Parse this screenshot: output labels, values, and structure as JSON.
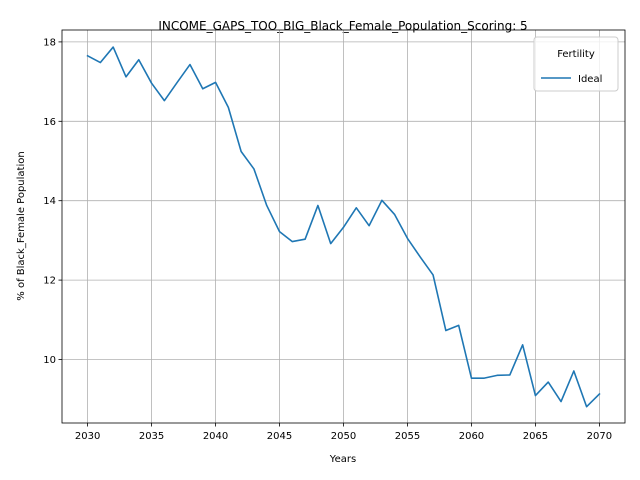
{
  "chart_data": {
    "type": "line",
    "title": "INCOME_GAPS_TOO_BIG_Black_Female_Population_Scoring: 5",
    "xlabel": "Years",
    "ylabel": "% of Black_Female Population",
    "xlim": [
      2028.0,
      2072.0
    ],
    "ylim": [
      8.4,
      18.3
    ],
    "xticks": [
      2030,
      2035,
      2040,
      2045,
      2050,
      2055,
      2060,
      2065,
      2070
    ],
    "yticks": [
      10,
      12,
      14,
      16,
      18
    ],
    "grid": true,
    "legend": {
      "title": "Fertility",
      "location": "top-right"
    },
    "series": [
      {
        "name": "Ideal",
        "color": "#1f77b4",
        "x": [
          2030,
          2031,
          2032,
          2033,
          2034,
          2035,
          2036,
          2037,
          2038,
          2039,
          2040,
          2041,
          2042,
          2043,
          2044,
          2045,
          2046,
          2047,
          2048,
          2049,
          2050,
          2051,
          2052,
          2053,
          2054,
          2055,
          2056,
          2057,
          2058,
          2059,
          2060,
          2061,
          2062,
          2063,
          2064,
          2065,
          2066,
          2067,
          2068,
          2069,
          2070
        ],
        "values": [
          17.65,
          17.48,
          17.87,
          17.12,
          17.55,
          16.96,
          16.52,
          16.98,
          17.43,
          16.82,
          16.98,
          16.35,
          15.24,
          14.8,
          13.88,
          13.22,
          12.97,
          13.03,
          13.88,
          12.92,
          13.33,
          13.82,
          13.37,
          14.01,
          13.65,
          13.05,
          12.58,
          12.13,
          10.73,
          10.86,
          9.53,
          9.53,
          9.6,
          9.61,
          10.37,
          9.09,
          9.43,
          8.94,
          9.71,
          8.81,
          9.13
        ]
      }
    ]
  }
}
